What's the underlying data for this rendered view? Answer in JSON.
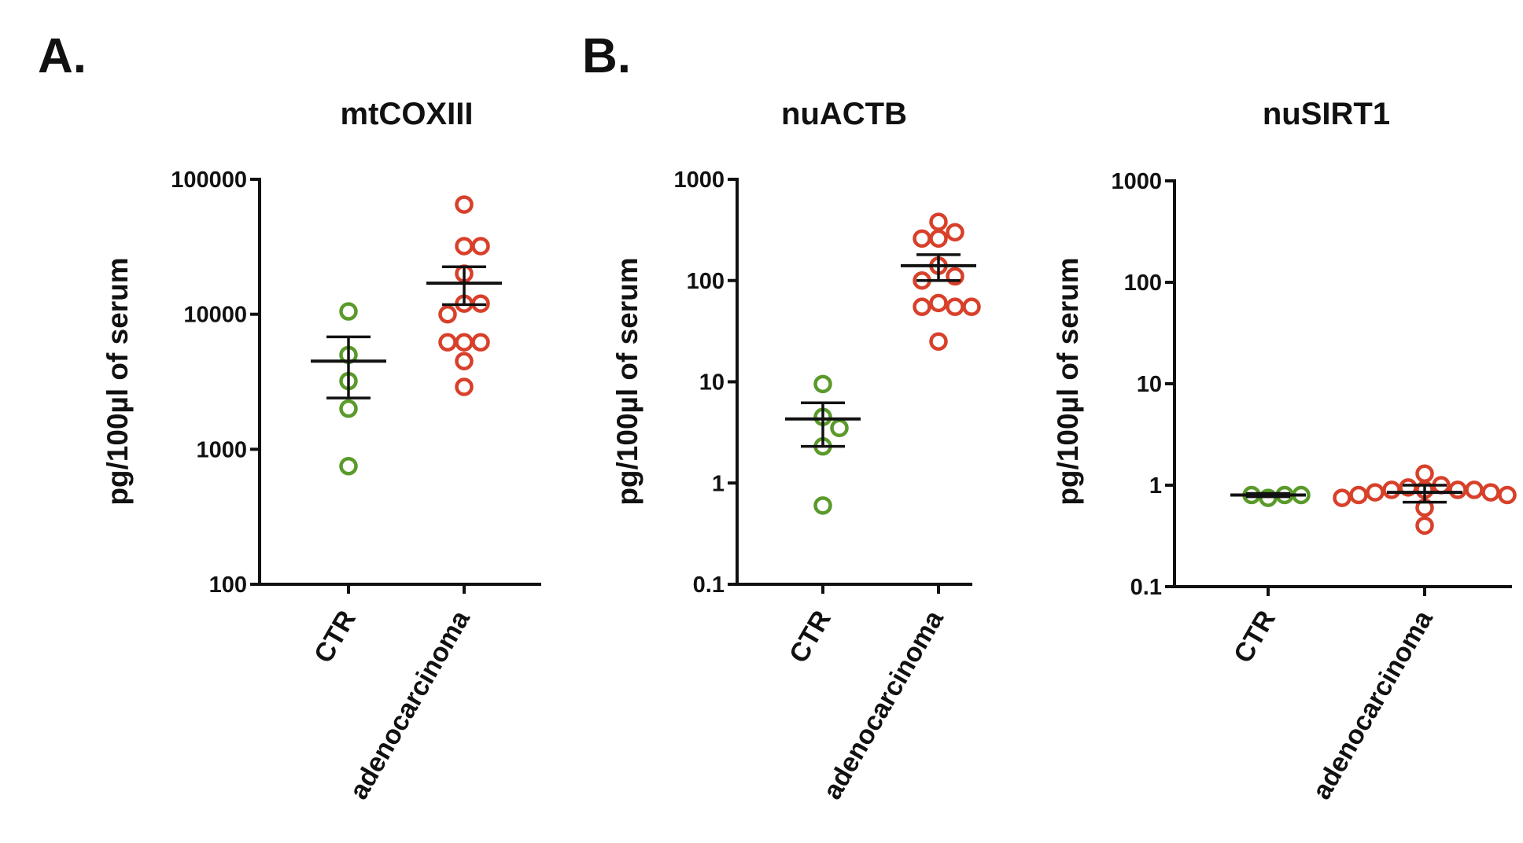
{
  "panel_labels": [
    "A.",
    "B."
  ],
  "colors": {
    "CTR": "#5a9a2a",
    "adenocarcinoma": "#d8402a",
    "axis": "#111111"
  },
  "chart_data": [
    {
      "type": "scatter",
      "title": "mtCOXIII",
      "ylabel": "pg/100µl of serum",
      "xlabel": "",
      "yscale": "log",
      "ylim": [
        100,
        100000
      ],
      "yticks": [
        100,
        1000,
        10000,
        100000
      ],
      "ytick_labels": [
        "100",
        "1000",
        "10000",
        "100000"
      ],
      "categories": [
        "CTR",
        "adenocarcinoma"
      ],
      "series": [
        {
          "name": "CTR",
          "values": [
            10500,
            5000,
            3200,
            2000,
            750
          ],
          "mean": 4500,
          "sem_low": 2400,
          "sem_high": 6800
        },
        {
          "name": "adenocarcinoma",
          "values": [
            65000,
            32000,
            32000,
            20000,
            12000,
            12000,
            10000,
            6200,
            6200,
            6200,
            4500,
            2900
          ],
          "mean": 17000,
          "sem_low": 11800,
          "sem_high": 22500
        }
      ]
    },
    {
      "type": "scatter",
      "title": "nuACTB",
      "ylabel": "pg/100µl of serum",
      "xlabel": "",
      "yscale": "log",
      "ylim": [
        0.1,
        1000
      ],
      "yticks": [
        0.1,
        1,
        10,
        100,
        1000
      ],
      "ytick_labels": [
        "0.1",
        "1",
        "10",
        "100",
        "1000"
      ],
      "categories": [
        "CTR",
        "adenocarcinoma"
      ],
      "series": [
        {
          "name": "CTR",
          "values": [
            9.5,
            4.5,
            3.5,
            2.3,
            0.6
          ],
          "mean": 4.3,
          "sem_low": 2.3,
          "sem_high": 6.2
        },
        {
          "name": "adenocarcinoma",
          "values": [
            380,
            300,
            260,
            260,
            140,
            110,
            100,
            60,
            55,
            55,
            55,
            25
          ],
          "mean": 140,
          "sem_low": 100,
          "sem_high": 180
        }
      ]
    },
    {
      "type": "scatter",
      "title": "nuSIRT1",
      "ylabel": "pg/100µl of serum",
      "xlabel": "",
      "yscale": "log",
      "ylim": [
        0.1,
        1000
      ],
      "yticks": [
        0.1,
        1,
        10,
        100,
        1000
      ],
      "ytick_labels": [
        "0.1",
        "1",
        "10",
        "100",
        "1000"
      ],
      "categories": [
        "CTR",
        "adenocarcinoma"
      ],
      "series": [
        {
          "name": "CTR",
          "values": [
            0.75,
            0.8,
            0.8,
            0.8
          ],
          "mean": 0.8,
          "sem_low": 0.77,
          "sem_high": 0.83
        },
        {
          "name": "adenocarcinoma",
          "values": [
            1.3,
            1.0,
            0.95,
            0.9,
            0.9,
            0.9,
            0.9,
            0.85,
            0.85,
            0.8,
            0.8,
            0.75,
            0.6,
            0.4
          ],
          "mean": 0.85,
          "sem_low": 0.68,
          "sem_high": 1.0
        }
      ]
    }
  ]
}
